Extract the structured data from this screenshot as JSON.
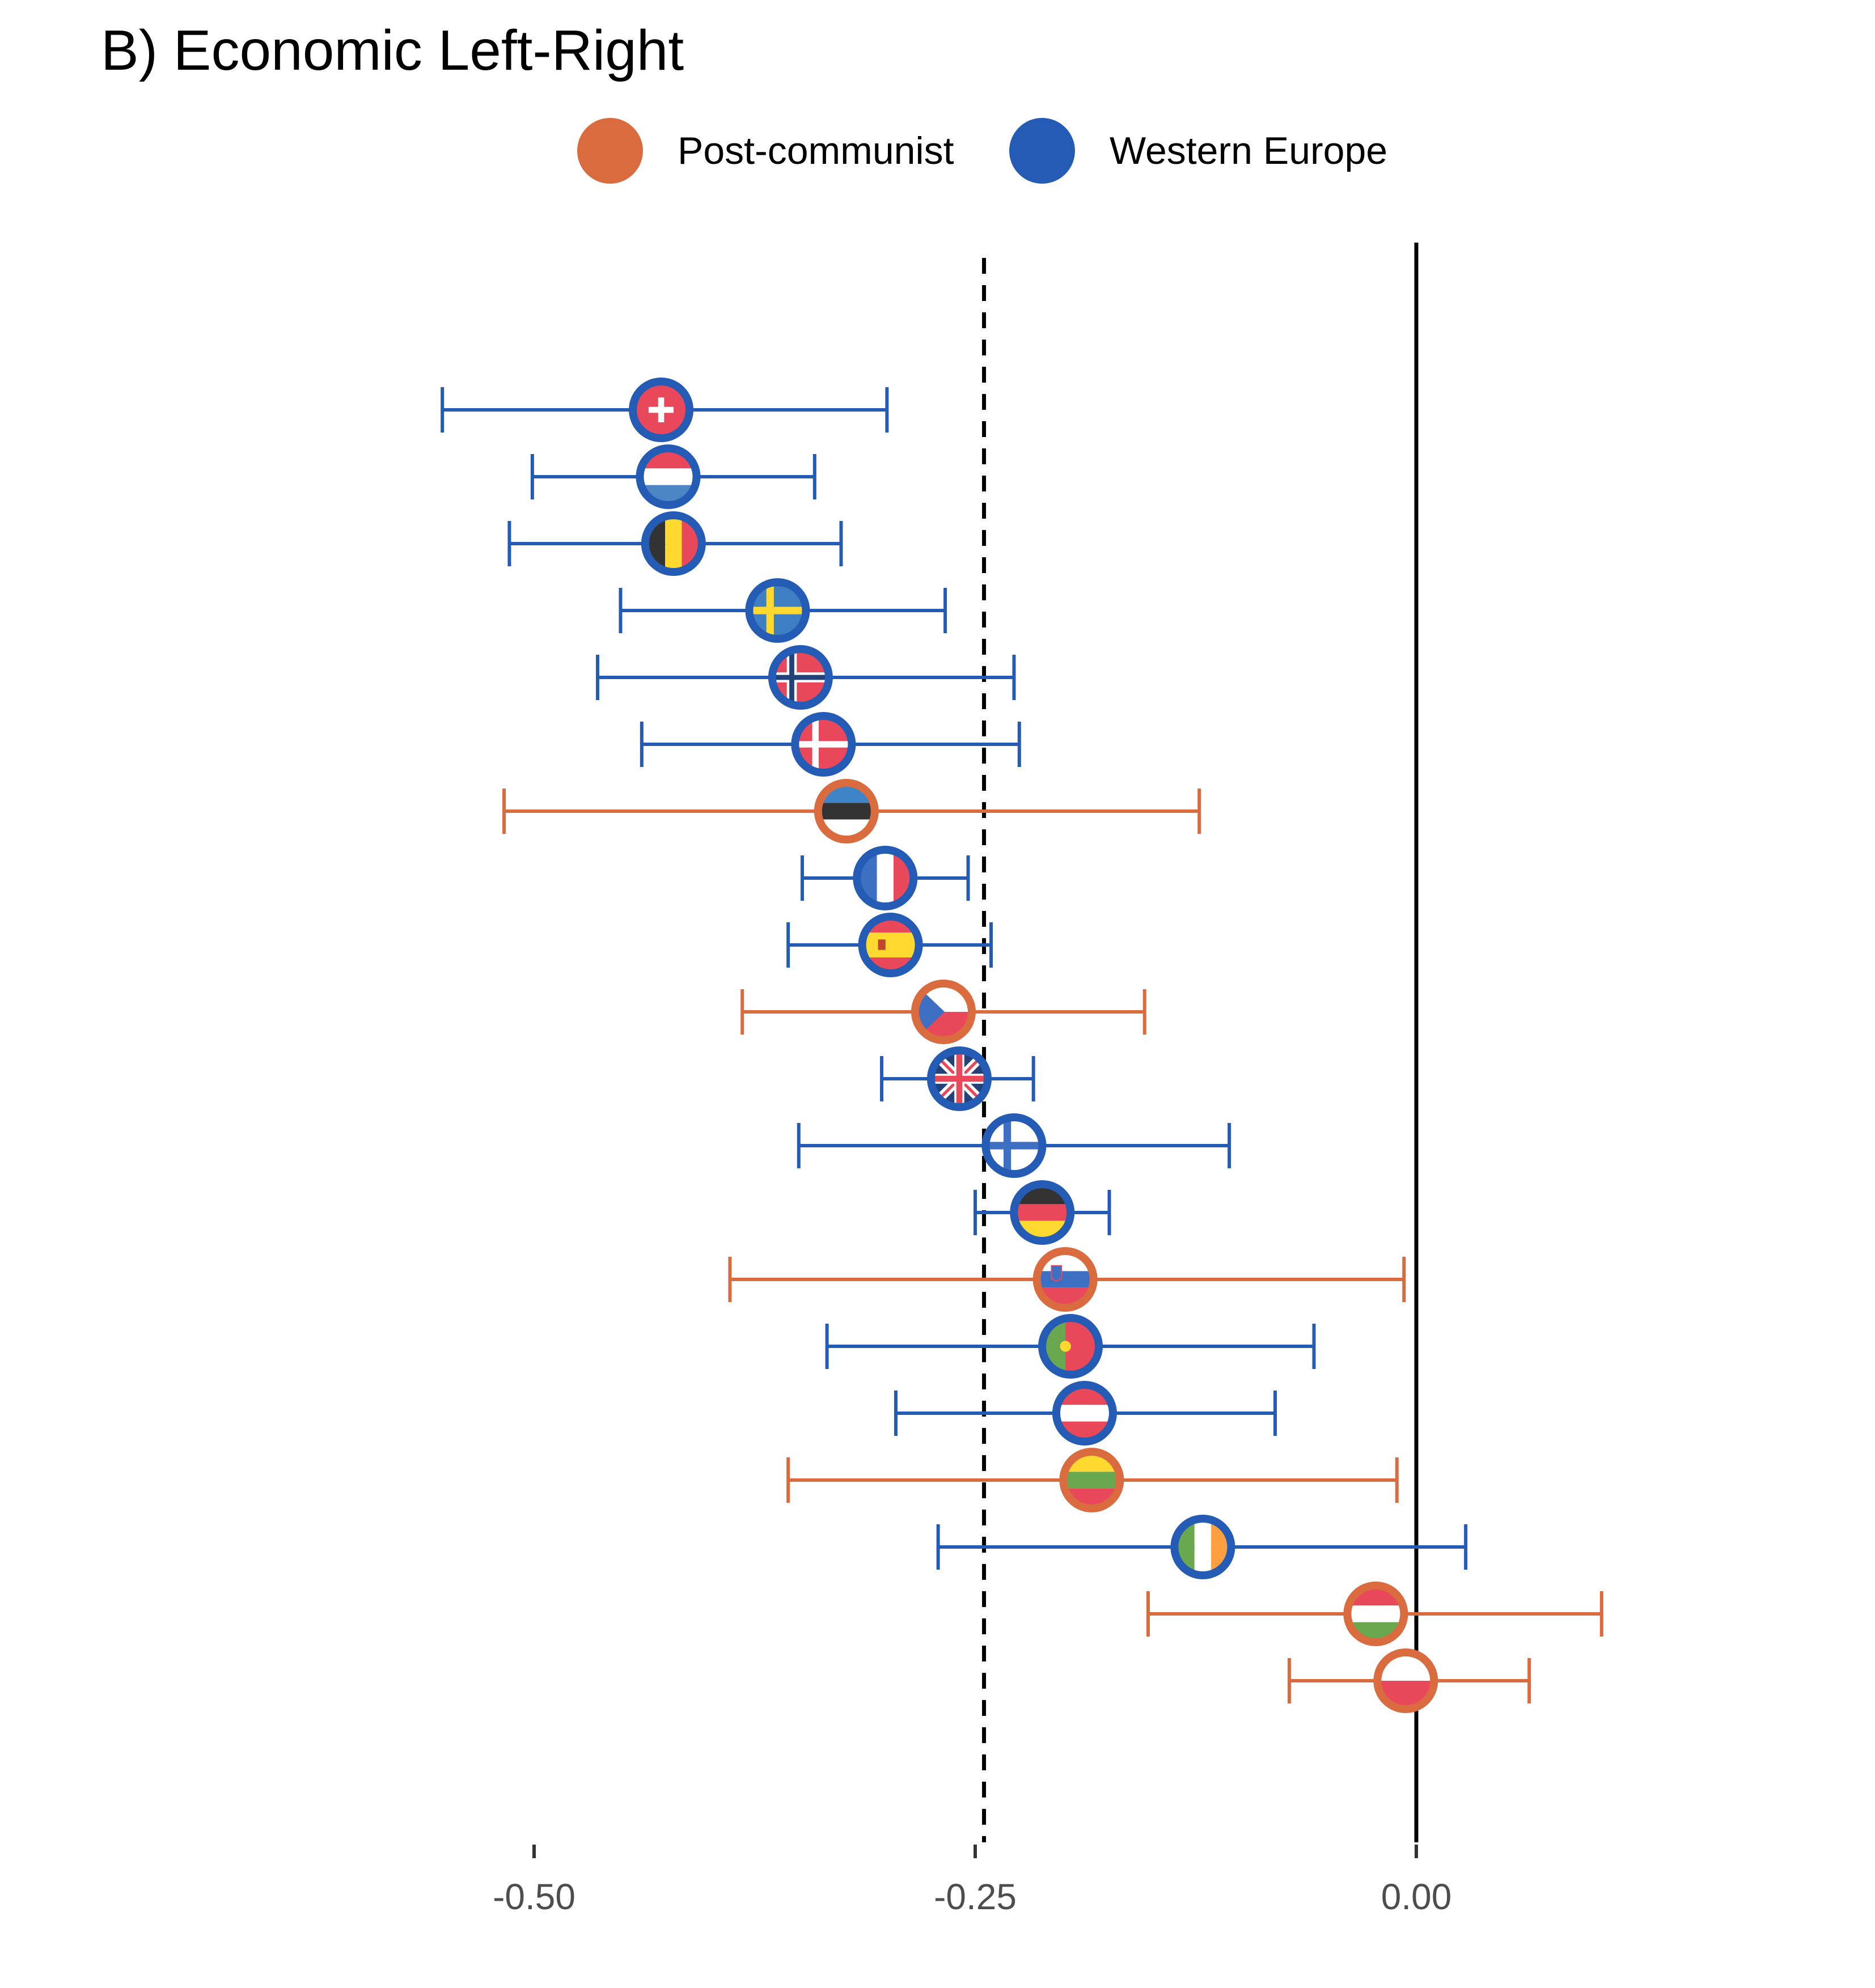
{
  "chart_data": {
    "type": "scatter",
    "title": "B) Economic Left-Right",
    "xlabel": "",
    "ylabel": "",
    "xlim": [
      -0.5,
      0.0
    ],
    "xticks": [
      {
        "value": -0.5,
        "label": "-0.50"
      },
      {
        "value": -0.25,
        "label": "-0.25"
      },
      {
        "value": 0.0,
        "label": "0.00"
      }
    ],
    "grid": false,
    "legend_position": "top",
    "reference_lines": [
      {
        "value": 0.0,
        "style": "solid"
      },
      {
        "value": -0.245,
        "style": "dashed"
      }
    ],
    "legend": [
      {
        "name": "Post-communist",
        "color": "#d96b3f"
      },
      {
        "name": "Western Europe",
        "color": "#245bb5"
      }
    ],
    "points": [
      {
        "flag": "switzerland",
        "group": "Western Europe",
        "estimate": -0.428,
        "lower": -0.552,
        "upper": -0.3
      },
      {
        "flag": "netherlands",
        "group": "Western Europe",
        "estimate": -0.424,
        "lower": -0.501,
        "upper": -0.341
      },
      {
        "flag": "belgium",
        "group": "Western Europe",
        "estimate": -0.421,
        "lower": -0.514,
        "upper": -0.326
      },
      {
        "flag": "sweden",
        "group": "Western Europe",
        "estimate": -0.362,
        "lower": -0.451,
        "upper": -0.267
      },
      {
        "flag": "norway",
        "group": "Western Europe",
        "estimate": -0.349,
        "lower": -0.464,
        "upper": -0.228
      },
      {
        "flag": "denmark",
        "group": "Western Europe",
        "estimate": -0.336,
        "lower": -0.439,
        "upper": -0.225
      },
      {
        "flag": "estonia",
        "group": "Post-communist",
        "estimate": -0.323,
        "lower": -0.517,
        "upper": -0.123
      },
      {
        "flag": "france",
        "group": "Western Europe",
        "estimate": -0.301,
        "lower": -0.348,
        "upper": -0.254
      },
      {
        "flag": "spain",
        "group": "Western Europe",
        "estimate": -0.298,
        "lower": -0.356,
        "upper": -0.241
      },
      {
        "flag": "czech-republic",
        "group": "Post-communist",
        "estimate": -0.268,
        "lower": -0.382,
        "upper": -0.154
      },
      {
        "flag": "united-kingdom",
        "group": "Western Europe",
        "estimate": -0.259,
        "lower": -0.303,
        "upper": -0.217
      },
      {
        "flag": "finland",
        "group": "Western Europe",
        "estimate": -0.228,
        "lower": -0.35,
        "upper": -0.106
      },
      {
        "flag": "germany",
        "group": "Western Europe",
        "estimate": -0.212,
        "lower": -0.25,
        "upper": -0.174
      },
      {
        "flag": "slovenia",
        "group": "Post-communist",
        "estimate": -0.199,
        "lower": -0.389,
        "upper": -0.007
      },
      {
        "flag": "portugal",
        "group": "Western Europe",
        "estimate": -0.196,
        "lower": -0.334,
        "upper": -0.058
      },
      {
        "flag": "austria",
        "group": "Western Europe",
        "estimate": -0.188,
        "lower": -0.295,
        "upper": -0.08
      },
      {
        "flag": "lithuania",
        "group": "Post-communist",
        "estimate": -0.184,
        "lower": -0.356,
        "upper": -0.011
      },
      {
        "flag": "ireland",
        "group": "Western Europe",
        "estimate": -0.121,
        "lower": -0.271,
        "upper": 0.028
      },
      {
        "flag": "hungary",
        "group": "Post-communist",
        "estimate": -0.023,
        "lower": -0.152,
        "upper": 0.105
      },
      {
        "flag": "poland",
        "group": "Post-communist",
        "estimate": -0.006,
        "lower": -0.072,
        "upper": 0.064
      }
    ]
  }
}
